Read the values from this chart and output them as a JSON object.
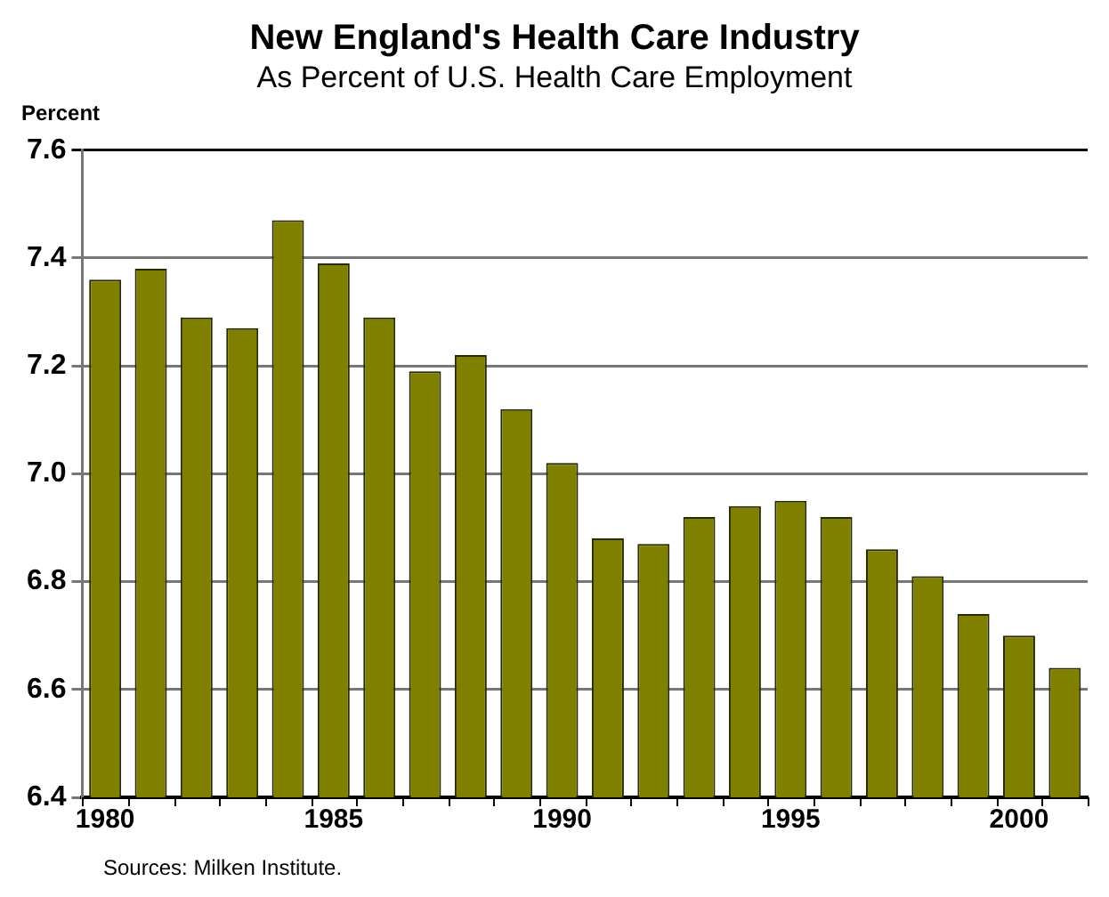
{
  "chart_data": {
    "type": "bar",
    "title": "New England's Health Care Industry",
    "subtitle": "As Percent of U.S. Health Care Employment",
    "ylabel": "Percent",
    "categories": [
      "1980",
      null,
      null,
      null,
      null,
      "1985",
      null,
      null,
      null,
      null,
      "1990",
      null,
      null,
      null,
      null,
      "1995",
      null,
      null,
      null,
      null,
      "2000",
      null
    ],
    "values": [
      7.36,
      7.38,
      7.29,
      7.27,
      7.47,
      7.39,
      7.29,
      7.19,
      7.22,
      7.12,
      7.02,
      6.88,
      6.87,
      6.92,
      6.94,
      6.95,
      6.92,
      6.86,
      6.81,
      6.74,
      6.7,
      6.64
    ],
    "color": "#808000",
    "ylim": [
      6.4,
      7.6
    ],
    "yticks": [
      6.4,
      6.6,
      6.8,
      {
        "value": 7,
        "label": "7.0"
      },
      7.2,
      7.4,
      7.6
    ],
    "grid": "y",
    "annotations": [
      "Sources: Milken Institute."
    ]
  }
}
